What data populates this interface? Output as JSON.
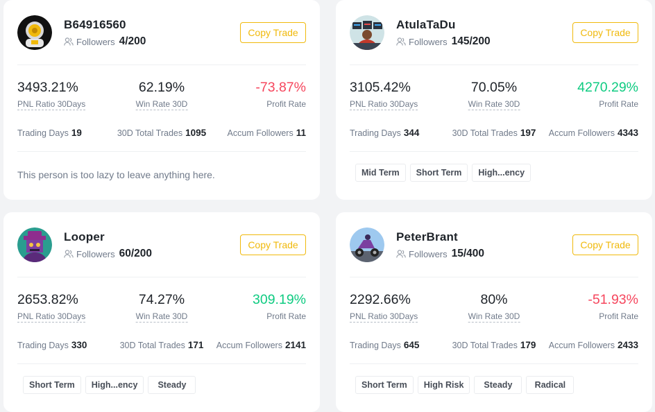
{
  "cards": [
    {
      "name": "B64916560",
      "followers_label": "Followers",
      "followers_value": "4/200",
      "copy_label": "Copy Trade",
      "pnl": "3493.21%",
      "pnl_label": "PNL Ratio 30Days",
      "win": "62.19%",
      "win_label": "Win Rate 30D",
      "profit": "-73.87%",
      "profit_label": "Profit Rate",
      "trading_days_label": "Trading Days",
      "trading_days": "19",
      "total_trades_label": "30D Total Trades",
      "total_trades": "1095",
      "accum_label": "Accum Followers",
      "accum": "11",
      "bio": "This person is too lazy to leave anything here.",
      "tags": []
    },
    {
      "name": "AtulaTaDu",
      "followers_label": "Followers",
      "followers_value": "145/200",
      "copy_label": "Copy Trade",
      "pnl": "3105.42%",
      "pnl_label": "PNL Ratio 30Days",
      "win": "70.05%",
      "win_label": "Win Rate 30D",
      "profit": "4270.29%",
      "profit_label": "Profit Rate",
      "trading_days_label": "Trading Days",
      "trading_days": "344",
      "total_trades_label": "30D Total Trades",
      "total_trades": "197",
      "accum_label": "Accum Followers",
      "accum": "4343",
      "tags": [
        "Mid Term",
        "Short Term",
        "High...ency"
      ]
    },
    {
      "name": "Looper",
      "followers_label": "Followers",
      "followers_value": "60/200",
      "copy_label": "Copy Trade",
      "pnl": "2653.82%",
      "pnl_label": "PNL Ratio 30Days",
      "win": "74.27%",
      "win_label": "Win Rate 30D",
      "profit": "309.19%",
      "profit_label": "Profit Rate",
      "trading_days_label": "Trading Days",
      "trading_days": "330",
      "total_trades_label": "30D Total Trades",
      "total_trades": "171",
      "accum_label": "Accum Followers",
      "accum": "2141",
      "tags": [
        "Short Term",
        "High...ency",
        "Steady"
      ]
    },
    {
      "name": "PeterBrant",
      "followers_label": "Followers",
      "followers_value": "15/400",
      "copy_label": "Copy Trade",
      "pnl": "2292.66%",
      "pnl_label": "PNL Ratio 30Days",
      "win": "80%",
      "win_label": "Win Rate 30D",
      "profit": "-51.93%",
      "profit_label": "Profit Rate",
      "trading_days_label": "Trading Days",
      "trading_days": "645",
      "total_trades_label": "30D Total Trades",
      "total_trades": "179",
      "accum_label": "Accum Followers",
      "accum": "2433",
      "tags": [
        "Short Term",
        "High Risk",
        "Steady",
        "Radical"
      ]
    }
  ],
  "colors": {
    "accent": "#f0b90b",
    "negative": "#f6465d",
    "positive": "#0ecb81",
    "text_primary": "#1e2329",
    "text_secondary": "#707a8a"
  },
  "icons": {
    "followers": "people-icon",
    "avatars": [
      "astronaut-avatar",
      "trading-desk-avatar",
      "purple-character-avatar",
      "scooter-avatar"
    ]
  }
}
